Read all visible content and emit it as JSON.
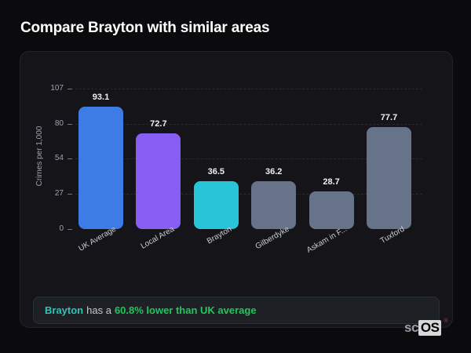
{
  "page": {
    "title": "Compare Brayton with similar areas"
  },
  "chart_data": {
    "type": "bar",
    "categories": [
      "UK Average",
      "Local Area",
      "Brayton",
      "Gilberdyke",
      "Askam in F...",
      "Tuxford"
    ],
    "values": [
      93.1,
      72.7,
      36.5,
      36.2,
      28.7,
      77.7
    ],
    "bar_colors": [
      "#3d7ce4",
      "#875df2",
      "#28c5d8",
      "#677389",
      "#677389",
      "#677389"
    ],
    "title": "",
    "xlabel": "",
    "ylabel": "Crimes per 1,000",
    "yticks": [
      107,
      80,
      54,
      27,
      0
    ],
    "ylim": [
      0,
      107
    ],
    "grid": "dashed-horizontal",
    "legend": false
  },
  "note": {
    "highlight": "Brayton",
    "middle": "has a",
    "stat": "60.8% lower than UK average",
    "highlight_color": "#2dc5b4",
    "stat_color": "#22c55e"
  },
  "logo": {
    "prefix": "sc",
    "suffix": "OS",
    "registered": "®"
  }
}
